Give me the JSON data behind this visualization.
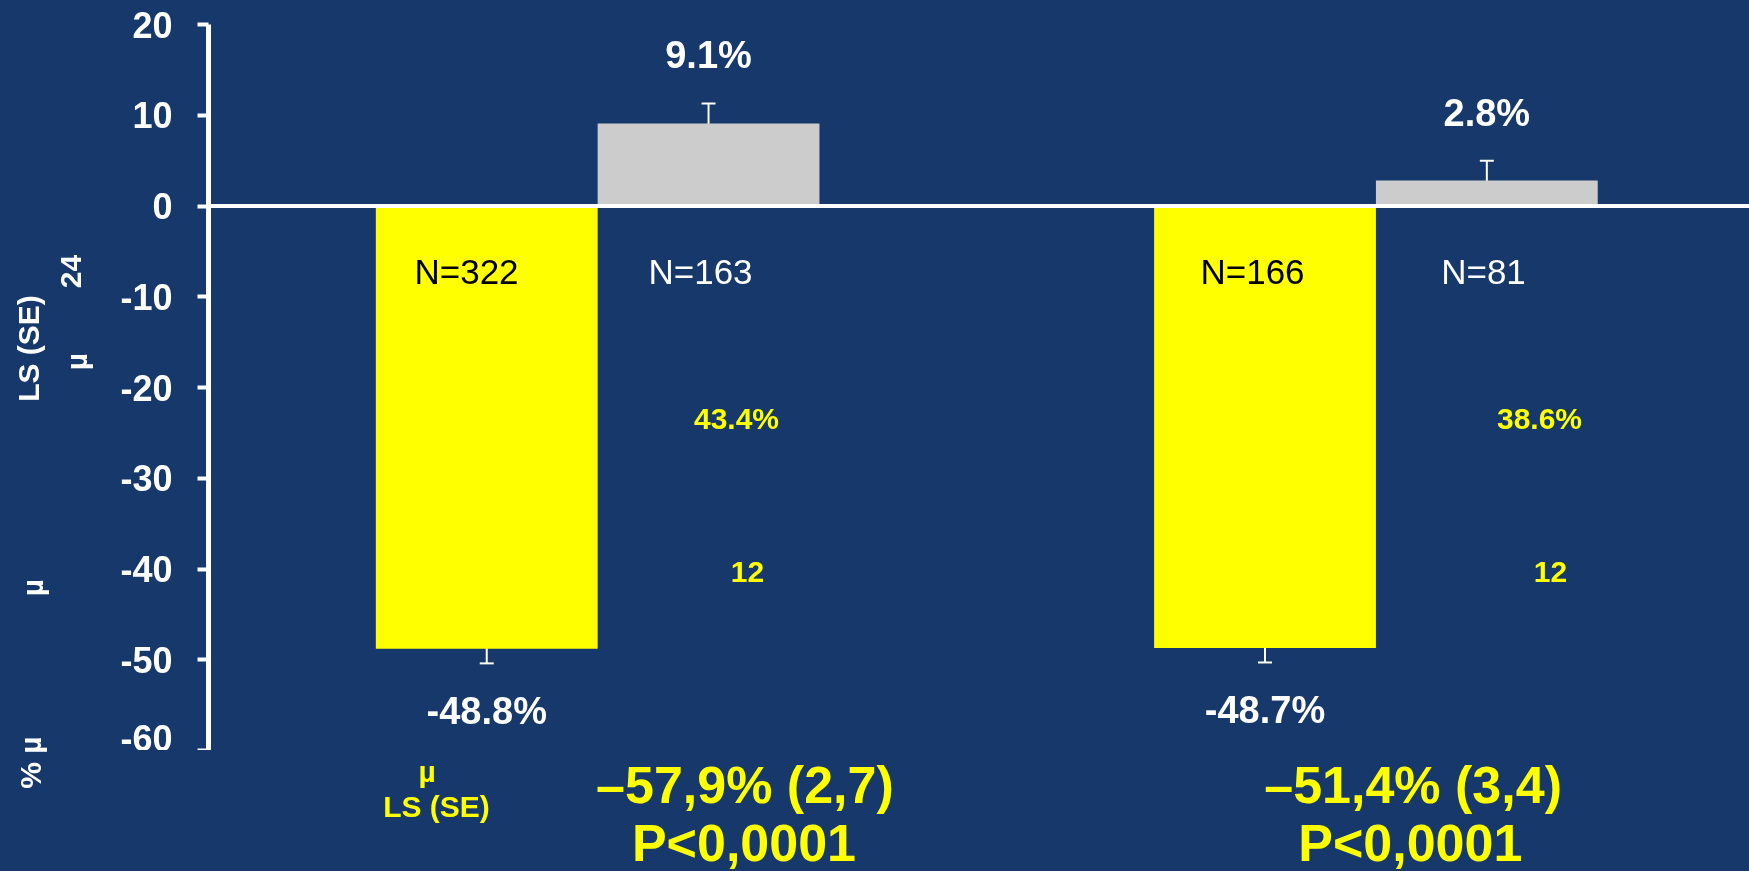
{
  "chart_data": {
    "type": "bar",
    "categories": [
      null,
      null
    ],
    "series": [
      {
        "color": "#ffff00",
        "values": [
          -48.8,
          -48.7
        ],
        "errors": [
          1.6,
          1.6
        ],
        "value_labels": [
          "-48.8%",
          "-48.7%"
        ]
      },
      {
        "color": "#cccccc",
        "values": [
          9.1,
          2.8
        ],
        "errors": [
          2.2,
          2.2
        ],
        "value_labels": [
          "9.1%",
          "2.8%"
        ]
      }
    ],
    "ylim": [
      -60,
      20
    ],
    "yticks": [
      -60,
      -50,
      -40,
      -30,
      -20,
      -10,
      0,
      10,
      20
    ],
    "tick_labels": "y",
    "ref_lines": [
      {
        "axis": "y",
        "value": 0,
        "color": "#ffffff"
      }
    ],
    "annotations": [
      "N=322",
      "N=163",
      "N=166",
      "N=81",
      "43.4%",
      "12",
      "38.6%",
      "12",
      "µ",
      "LS (SE)",
      "–57,9% (2,7)",
      "P<0,0001",
      "–51,4% (3,4)",
      "P<0,0001",
      "% µ",
      "µ",
      "LS (SE)",
      "µ",
      "24"
    ]
  }
}
